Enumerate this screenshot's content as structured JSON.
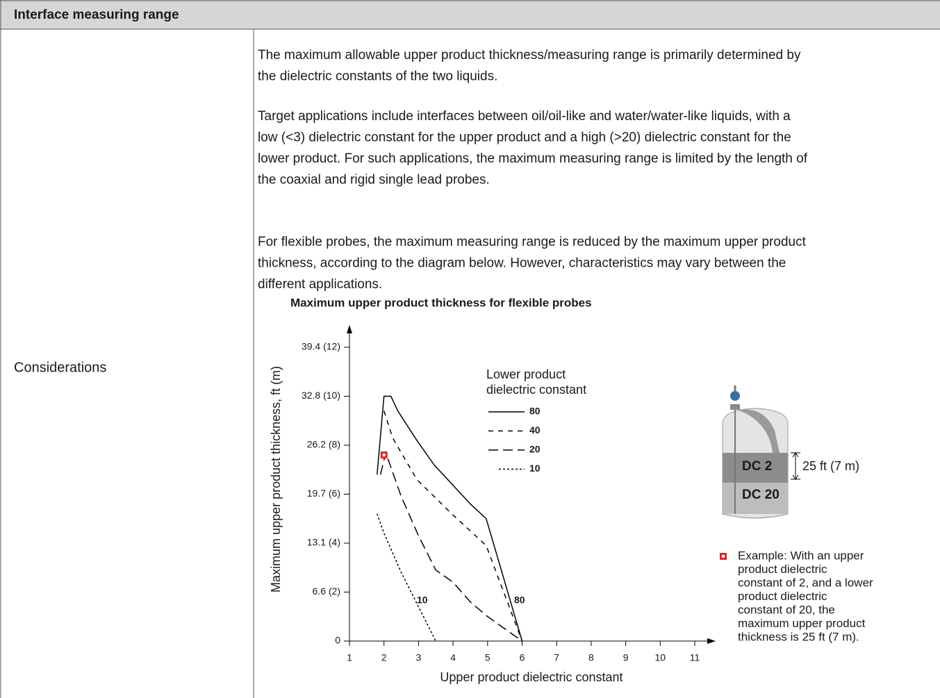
{
  "header": {
    "title": "Interface measuring range"
  },
  "row": {
    "label": "Considerations",
    "paragraphs": [
      [
        "The maximum allowable upper product thickness/measuring range is primarily determined by",
        "the dielectric constants of the two liquids."
      ],
      [
        "Target applications include interfaces between oil/oil-like and water/water-like liquids, with a",
        "low (<3) dielectric constant for the upper product and a high (>20) dielectric constant for the",
        "lower product. For such applications, the maximum measuring range is limited by the length of",
        "the coaxial and rigid single lead probes."
      ],
      [
        "For flexible probes, the maximum measuring range is reduced by the maximum upper product",
        "thickness, according to the diagram below. However, characteristics may vary between the",
        "different applications."
      ]
    ]
  },
  "chart": {
    "type": "line",
    "title": "Maximum upper product thickness for flexible probes",
    "x_label": "Upper product dielectric constant",
    "y_label": "Maximum upper product thickness, ft (m)",
    "xlim": [
      1,
      11.5
    ],
    "ylim": [
      0,
      12.8
    ],
    "xticks": [
      1,
      2,
      3,
      4,
      5,
      6,
      7,
      8,
      9,
      10,
      11
    ],
    "yticks": [
      0,
      {
        "value": 2,
        "label": "6.6 (2)"
      },
      {
        "value": 4,
        "label": "13.1 (4)"
      },
      {
        "value": 6,
        "label": "19.7 (6)"
      },
      {
        "value": 8,
        "label": "26.2 (8)"
      },
      {
        "value": 10,
        "label": "32.8 (10)"
      },
      {
        "value": 12,
        "label": "39.4 (12)"
      }
    ],
    "legend_title": [
      "Lower product",
      "dielectric constant"
    ],
    "series": [
      {
        "name": "80",
        "color": "#000000",
        "dash": "solid",
        "x": [
          1.8,
          2.0,
          2.2,
          2.4,
          2.95,
          3.45,
          4.5,
          4.96,
          6.0
        ],
        "values": [
          6.8,
          10.0,
          10.0,
          9.4,
          8.2,
          7.2,
          5.6,
          5.0,
          0
        ]
      },
      {
        "name": "40",
        "color": "#000000",
        "dash": "dashed",
        "x": [
          2.0,
          2.25,
          2.95,
          3.96,
          4.96,
          6.0
        ],
        "values": [
          9.4,
          8.3,
          6.6,
          5.2,
          3.9,
          0
        ]
      },
      {
        "name": "20",
        "color": "#000000",
        "dash": "long-dashed",
        "x": [
          1.9,
          2.05,
          2.5,
          3.0,
          3.5,
          4.0,
          4.5,
          5.0,
          6.0
        ],
        "values": [
          6.8,
          7.7,
          5.9,
          4.3,
          2.9,
          2.4,
          1.6,
          1.0,
          0
        ]
      },
      {
        "name": "10",
        "color": "#000000",
        "dash": "dotted",
        "x": [
          1.8,
          2.0,
          2.5,
          3.0,
          3.5
        ],
        "values": [
          5.2,
          4.4,
          2.8,
          1.4,
          0
        ]
      }
    ],
    "example_point": {
      "x": 2,
      "y": 7.6,
      "color": "#d7262e"
    },
    "tank": {
      "upper": "DC 2",
      "lower": "DC 20",
      "height_label": "25 ft (7 m)"
    },
    "example_note": [
      "Example: With an upper",
      "product dielectric",
      "constant of 2, and a lower",
      "product dielectric",
      "constant of 20, the",
      "maximum upper product",
      "thickness is 25 ft (7 m)."
    ]
  }
}
